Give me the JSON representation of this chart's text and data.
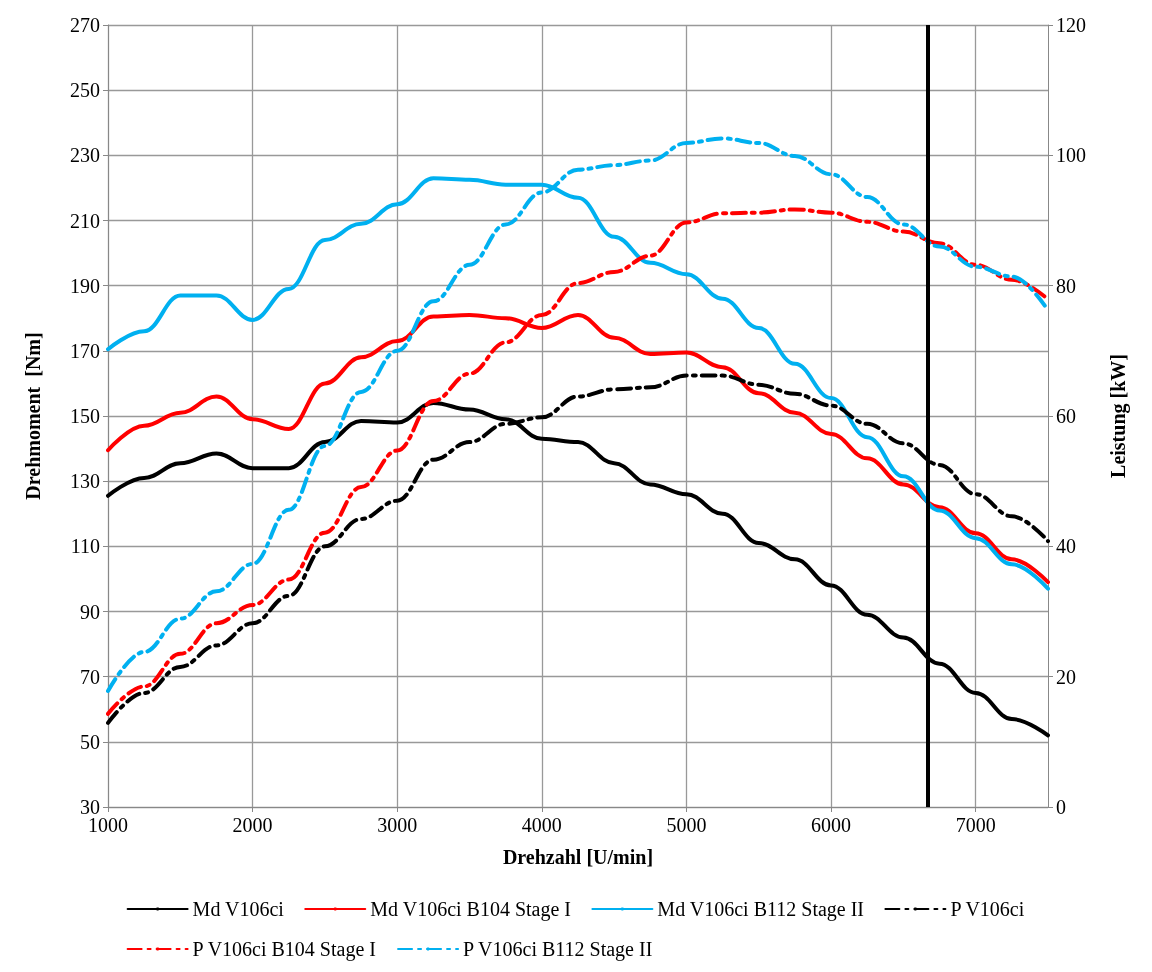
{
  "chart_data": {
    "type": "line",
    "xlabel": "Drehzahl [U/min]",
    "ylabel": "Drehmoment  [Nm]",
    "y2label": "Leistung [kW]",
    "x": [
      1000,
      1250,
      1500,
      1750,
      2000,
      2250,
      2500,
      2750,
      3000,
      3250,
      3500,
      3750,
      4000,
      4250,
      4500,
      4750,
      5000,
      5250,
      5500,
      5750,
      6000,
      6250,
      6500,
      6750,
      7000,
      7250,
      7500
    ],
    "xlim": [
      1000,
      7500
    ],
    "xticks": [
      1000,
      2000,
      3000,
      4000,
      5000,
      6000,
      7000
    ],
    "ylim": [
      30,
      270
    ],
    "yticks": [
      30,
      50,
      70,
      90,
      110,
      130,
      150,
      170,
      190,
      210,
      230,
      250,
      270
    ],
    "y2lim": [
      0,
      120
    ],
    "y2ticks": [
      0,
      20,
      40,
      60,
      80,
      100,
      120
    ],
    "grid": true,
    "legend": "bottom",
    "marker": "none",
    "ref_lines": [
      {
        "axis": "x",
        "value": 6670,
        "color": "#000000"
      }
    ],
    "series": [
      {
        "name": "Md V106ci",
        "color": "#000000",
        "line_style": "solid",
        "values": [
          125.5,
          131,
          135.5,
          138.5,
          134,
          134,
          142,
          148.5,
          148,
          154,
          152,
          149,
          143,
          142,
          135.5,
          129,
          126,
          120,
          111,
          106,
          98,
          89,
          82,
          74,
          65,
          57,
          52
        ]
      },
      {
        "name": "Md V106ci B104 Stage I",
        "color": "#ff0000",
        "line_style": "solid",
        "values": [
          139.5,
          147,
          151,
          156,
          149,
          146,
          160,
          168,
          173,
          180.5,
          181,
          180,
          177,
          181,
          174,
          169,
          169.5,
          165,
          157,
          151,
          144.5,
          137,
          129,
          122,
          114,
          106,
          99
        ]
      },
      {
        "name": "Md V106ci B112 Stage II",
        "color": "#00b0f0",
        "line_style": "solid",
        "values": [
          170.5,
          176,
          187,
          187,
          179.5,
          189,
          204,
          209,
          215,
          223,
          222.5,
          221,
          221,
          217,
          205,
          197,
          193.5,
          186,
          177,
          166,
          155.5,
          143.5,
          131.5,
          121,
          112.5,
          104.5,
          97
        ]
      },
      {
        "name": "P V106ci",
        "color": "#000000",
        "line_style": "dashed",
        "axis": "y2",
        "values": [
          12.9,
          17.5,
          21.5,
          24.8,
          28.2,
          32.4,
          40,
          44.2,
          47,
          53.3,
          56,
          58.8,
          59.8,
          63,
          64.1,
          64.4,
          66.2,
          66.2,
          64.8,
          63.4,
          61.6,
          58.8,
          55.8,
          52.5,
          48,
          44.6,
          40.8
        ]
      },
      {
        "name": "P V106ci B104 Stage I",
        "color": "#ff0000",
        "line_style": "dashed",
        "axis": "y2",
        "values": [
          14.3,
          18.5,
          23.5,
          28.2,
          31,
          34.9,
          42.1,
          49.1,
          54.7,
          62.3,
          66.5,
          71.3,
          75.5,
          80.4,
          82.1,
          84.6,
          89.7,
          91.1,
          91.2,
          91.7,
          91.2,
          89.8,
          88.3,
          86.5,
          83.2,
          80.9,
          77.9
        ]
      },
      {
        "name": "P V106ci B112 Stage II",
        "color": "#00b0f0",
        "line_style": "dashed",
        "axis": "y2",
        "values": [
          17.8,
          23.8,
          28.9,
          33.1,
          37.3,
          45.6,
          55.4,
          63.7,
          70,
          77.6,
          83.2,
          89.4,
          94.3,
          97.8,
          98.5,
          99.2,
          101.9,
          102.6,
          101.9,
          99.9,
          97.1,
          93.6,
          89.4,
          86,
          82.9,
          81.4,
          76.2
        ]
      }
    ]
  }
}
